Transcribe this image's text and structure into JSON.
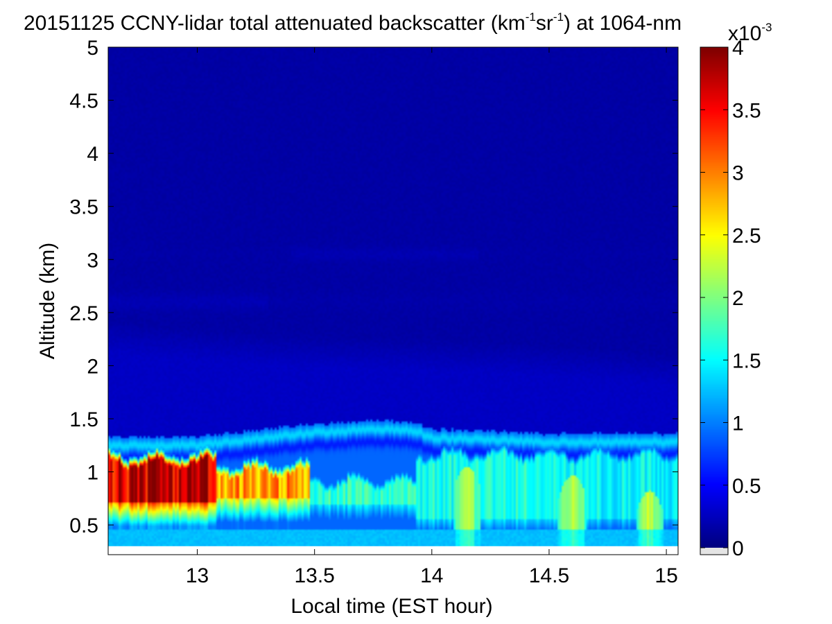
{
  "chart_data": {
    "type": "heatmap",
    "title_main": "20151125 CCNY-lidar total attenuated backscatter (km",
    "title_sup1": "-1",
    "title_mid": "sr",
    "title_sup2": "-1",
    "title_tail": ") at 1064-nm",
    "xlabel": "Local time (EST hour)",
    "ylabel": "Altitude (km)",
    "xlim": [
      12.62,
      15.05
    ],
    "ylim": [
      0.22,
      5
    ],
    "data_ymin": 0.3,
    "xticks": [
      13,
      13.5,
      14,
      14.5,
      15
    ],
    "xtick_labels": [
      "13",
      "13.5",
      "14",
      "14.5",
      "15"
    ],
    "yticks": [
      0.5,
      1,
      1.5,
      2,
      2.5,
      3,
      3.5,
      4,
      4.5,
      5
    ],
    "ytick_labels": [
      "0.5",
      "1",
      "1.5",
      "2",
      "2.5",
      "3",
      "3.5",
      "4",
      "4.5",
      "5"
    ],
    "colorbar": {
      "clim": [
        0,
        4
      ],
      "ticks": [
        0,
        0.5,
        1,
        1.5,
        2,
        2.5,
        3,
        3.5,
        4
      ],
      "tick_labels": [
        "0",
        "0.5",
        "1",
        "1.5",
        "2",
        "2.5",
        "3",
        "3.5",
        "4"
      ],
      "scale_base": "x10",
      "scale_exp": "-3",
      "colormap": "jet"
    },
    "profile": {
      "background": 0.12,
      "residual_layer_top_km": [
        [
          12.62,
          2.42
        ],
        [
          13.0,
          2.35
        ],
        [
          13.5,
          2.28
        ],
        [
          14.0,
          2.25
        ],
        [
          14.5,
          2.2
        ],
        [
          15.05,
          2.1
        ]
      ],
      "boundary_layer_top_km": [
        [
          12.62,
          1.33
        ],
        [
          13.0,
          1.33
        ],
        [
          13.2,
          1.38
        ],
        [
          13.5,
          1.45
        ],
        [
          13.75,
          1.48
        ],
        [
          13.93,
          1.47
        ],
        [
          14.0,
          1.4
        ],
        [
          14.5,
          1.36
        ],
        [
          15.05,
          1.36
        ]
      ],
      "aerosol_core": [
        {
          "x": [
            12.62,
            13.08
          ],
          "top_km": 1.2,
          "bottom_km": 0.72,
          "peak": 3.7
        },
        {
          "x": [
            13.08,
            13.48
          ],
          "top_km": 1.12,
          "bottom_km": 0.75,
          "peak": 2.9
        },
        {
          "x": [
            13.48,
            13.93
          ],
          "top_km": 1.0,
          "bottom_km": 0.7,
          "peak": 1.7
        },
        {
          "x": [
            13.93,
            14.5
          ],
          "top_km": 1.25,
          "bottom_km": 0.55,
          "peak": 1.6
        },
        {
          "x": [
            14.5,
            15.05
          ],
          "top_km": 1.25,
          "bottom_km": 0.55,
          "peak": 1.5
        }
      ],
      "plumes": [
        {
          "x": 14.15,
          "top_km": 1.05,
          "peak": 2.4
        },
        {
          "x": 14.6,
          "top_km": 0.97,
          "peak": 2.5
        },
        {
          "x": 14.93,
          "top_km": 0.82,
          "peak": 2.4
        }
      ]
    }
  }
}
